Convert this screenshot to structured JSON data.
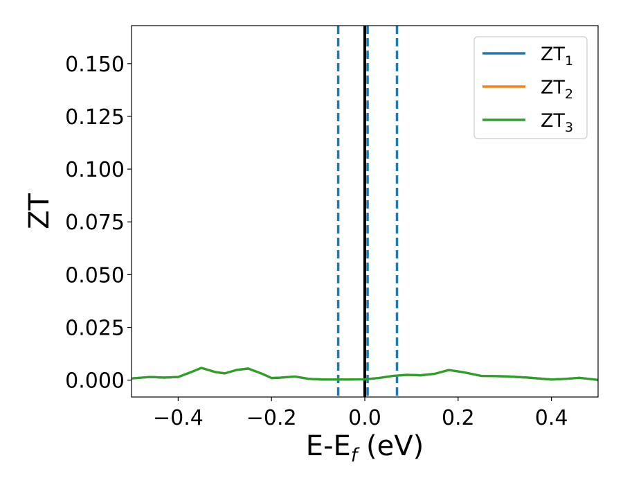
{
  "chart_data": {
    "type": "line",
    "xlabel": {
      "main": "E-E",
      "sub": "f",
      "suffix": " (eV)"
    },
    "ylabel": "ZT",
    "xlim": [
      -0.5,
      0.5
    ],
    "ylim": [
      -0.008,
      0.168
    ],
    "xticks": [
      -0.4,
      -0.2,
      0.0,
      0.2,
      0.4
    ],
    "xtick_labels": [
      "−0.4",
      "−0.2",
      "0.0",
      "0.2",
      "0.4"
    ],
    "yticks": [
      0.0,
      0.025,
      0.05,
      0.075,
      0.1,
      0.125,
      0.15
    ],
    "ytick_labels": [
      "0.000",
      "0.025",
      "0.050",
      "0.075",
      "0.100",
      "0.125",
      "0.150"
    ],
    "legend_position": "top-right",
    "x": [
      -0.5,
      -0.46,
      -0.43,
      -0.4,
      -0.37,
      -0.35,
      -0.32,
      -0.3,
      -0.275,
      -0.25,
      -0.22,
      -0.2,
      -0.18,
      -0.15,
      -0.12,
      -0.09,
      -0.06,
      -0.03,
      0.0,
      0.03,
      0.06,
      0.09,
      0.12,
      0.15,
      0.18,
      0.21,
      0.25,
      0.3,
      0.35,
      0.4,
      0.43,
      0.46,
      0.5
    ],
    "series": [
      {
        "name": "ZT",
        "sub": "1",
        "color": "#1f77b4",
        "values": [
          0.0008,
          0.0015,
          0.0012,
          0.0015,
          0.004,
          0.0058,
          0.0038,
          0.0032,
          0.0048,
          0.0055,
          0.003,
          0.001,
          0.0012,
          0.0017,
          0.0006,
          0.0003,
          0.0003,
          0.0003,
          0.0004,
          0.001,
          0.002,
          0.0025,
          0.0023,
          0.003,
          0.0048,
          0.0038,
          0.002,
          0.0018,
          0.0012,
          0.0003,
          0.0006,
          0.0011,
          0.0001
        ]
      },
      {
        "name": "ZT",
        "sub": "2",
        "color": "#ff7f0e",
        "values": [
          0.0008,
          0.0015,
          0.0012,
          0.0015,
          0.004,
          0.0058,
          0.0038,
          0.0032,
          0.0048,
          0.0055,
          0.003,
          0.001,
          0.0012,
          0.0017,
          0.0006,
          0.0003,
          0.0003,
          0.0003,
          0.0004,
          0.001,
          0.002,
          0.0025,
          0.0023,
          0.003,
          0.0048,
          0.0038,
          0.002,
          0.0018,
          0.0012,
          0.0003,
          0.0006,
          0.0011,
          0.0001
        ]
      },
      {
        "name": "ZT",
        "sub": "3",
        "color": "#2ca02c",
        "values": [
          0.0008,
          0.0015,
          0.0012,
          0.0015,
          0.004,
          0.0058,
          0.0038,
          0.0032,
          0.0048,
          0.0055,
          0.003,
          0.001,
          0.0012,
          0.0017,
          0.0006,
          0.0003,
          0.0003,
          0.0003,
          0.0004,
          0.001,
          0.002,
          0.0025,
          0.0023,
          0.003,
          0.0048,
          0.0038,
          0.002,
          0.0018,
          0.0012,
          0.0003,
          0.0006,
          0.0011,
          0.0001
        ]
      }
    ],
    "vlines": [
      {
        "x": -0.057,
        "color": "#1f77b4",
        "style": "dashed"
      },
      {
        "x": 0.006,
        "color": "#1f77b4",
        "style": "dashed"
      },
      {
        "x": 0.069,
        "color": "#1f77b4",
        "style": "dashed"
      },
      {
        "x": 0.0,
        "color": "#000000",
        "style": "solid"
      }
    ]
  }
}
